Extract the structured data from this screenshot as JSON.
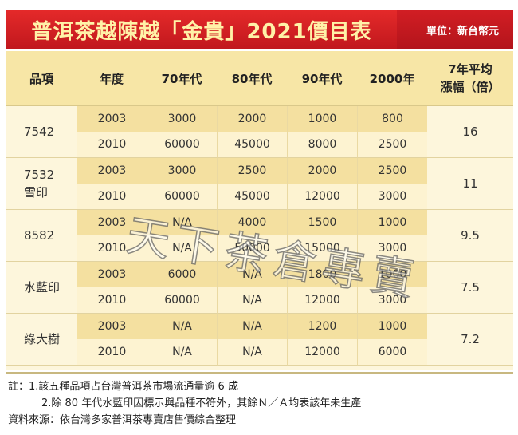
{
  "title": "普洱茶越陳越「金貴」2021價目表",
  "unit": "單位：新台幣元",
  "headers": {
    "item": "品項",
    "year": "年度",
    "c70": "70年代",
    "c80": "80年代",
    "c90": "90年代",
    "c2000": "2000年",
    "avg_line1": "7年平均",
    "avg_line2": "漲幅（倍）"
  },
  "groups": [
    {
      "name_line1": "7542",
      "name_line2": "",
      "avg": "16",
      "rows": [
        {
          "year": "2003",
          "c70": "3000",
          "c80": "2000",
          "c90": "1000",
          "c2000": "800"
        },
        {
          "year": "2010",
          "c70": "60000",
          "c80": "45000",
          "c90": "8000",
          "c2000": "2500"
        }
      ]
    },
    {
      "name_line1": "7532",
      "name_line2": "雪印",
      "avg": "11",
      "rows": [
        {
          "year": "2003",
          "c70": "3000",
          "c80": "2500",
          "c90": "2000",
          "c2000": "2500"
        },
        {
          "year": "2010",
          "c70": "60000",
          "c80": "45000",
          "c90": "12000",
          "c2000": "3000"
        }
      ]
    },
    {
      "name_line1": "8582",
      "name_line2": "",
      "avg": "9.5",
      "rows": [
        {
          "year": "2003",
          "c70": "N/A",
          "c80": "4000",
          "c90": "1500",
          "c2000": "1000"
        },
        {
          "year": "2010",
          "c70": "N/A",
          "c80": "50000",
          "c90": "15000",
          "c2000": "3000"
        }
      ]
    },
    {
      "name_line1": "水藍印",
      "name_line2": "",
      "avg": "7.5",
      "rows": [
        {
          "year": "2003",
          "c70": "6000",
          "c80": "N/A",
          "c90": "1800",
          "c2000": "1000"
        },
        {
          "year": "2010",
          "c70": "60000",
          "c80": "N/A",
          "c90": "12000",
          "c2000": "3000"
        }
      ]
    },
    {
      "name_line1": "綠大樹",
      "name_line2": "",
      "avg": "7.2",
      "rows": [
        {
          "year": "2003",
          "c70": "N/A",
          "c80": "N/A",
          "c90": "1200",
          "c2000": "1000"
        },
        {
          "year": "2010",
          "c70": "N/A",
          "c80": "N/A",
          "c90": "12000",
          "c2000": "6000"
        }
      ]
    }
  ],
  "watermark": "天下茶倉專賣",
  "notes": {
    "line1": "註：1.該五種品項占台灣普洱茶市場流通量逾 6 成",
    "line2": "2.除 80 年代水藍印因標示與品種不符外，其餘Ｎ／Ａ均表該年未生產",
    "line3": "資料來源：依台灣多家普洱茶專賣店售價綜合整理"
  }
}
